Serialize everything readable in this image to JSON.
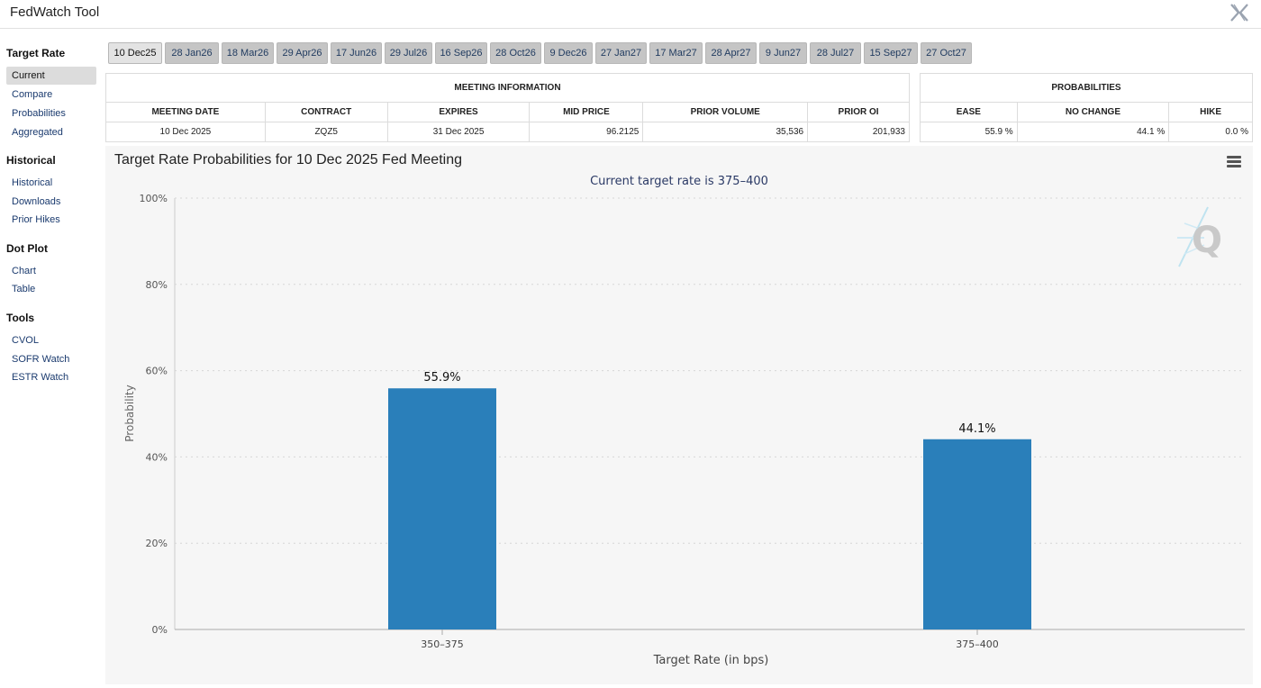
{
  "app": {
    "title": "FedWatch Tool"
  },
  "sidebar": {
    "sections": [
      {
        "title": "Target Rate",
        "items": [
          "Current",
          "Compare",
          "Probabilities",
          "Aggregated"
        ]
      },
      {
        "title": "Historical",
        "items": [
          "Historical",
          "Downloads",
          "Prior Hikes"
        ]
      },
      {
        "title": "Dot Plot",
        "items": [
          "Chart",
          "Table"
        ]
      },
      {
        "title": "Tools",
        "items": [
          "CVOL",
          "SOFR Watch",
          "ESTR Watch"
        ]
      }
    ],
    "active_item": "Current"
  },
  "tabs": [
    "10 Dec25",
    "28 Jan26",
    "18 Mar26",
    "29 Apr26",
    "17 Jun26",
    "29 Jul26",
    "16 Sep26",
    "28 Oct26",
    "9 Dec26",
    "27 Jan27",
    "17 Mar27",
    "28 Apr27",
    "9 Jun27",
    "28 Jul27",
    "15 Sep27",
    "27 Oct27"
  ],
  "active_tab": "10 Dec25",
  "meeting_info": {
    "title": "MEETING INFORMATION",
    "headers": [
      "MEETING DATE",
      "CONTRACT",
      "EXPIRES",
      "MID PRICE",
      "PRIOR VOLUME",
      "PRIOR OI"
    ],
    "row": [
      "10 Dec 2025",
      "ZQZ5",
      "31 Dec 2025",
      "96.2125",
      "35,536",
      "201,933"
    ]
  },
  "probabilities": {
    "title": "PROBABILITIES",
    "headers": [
      "EASE",
      "NO CHANGE",
      "HIKE"
    ],
    "row": [
      "55.9 %",
      "44.1 %",
      "0.0 %"
    ]
  },
  "chart_data": {
    "type": "bar",
    "title": "Target Rate Probabilities for 10 Dec 2025 Fed Meeting",
    "subtitle": "Current target rate is 375–400",
    "xlabel": "Target Rate (in bps)",
    "ylabel": "Probability",
    "categories": [
      "350–375",
      "375–400"
    ],
    "values": [
      55.9,
      44.1
    ],
    "data_labels": [
      "55.9%",
      "44.1%"
    ],
    "ylim": [
      0,
      100
    ],
    "yticks": [
      "0%",
      "20%",
      "40%",
      "60%",
      "80%",
      "100%"
    ],
    "ytick_values": [
      0,
      20,
      40,
      60,
      80,
      100
    ],
    "bar_color": "#2a7fba",
    "grid": true
  }
}
